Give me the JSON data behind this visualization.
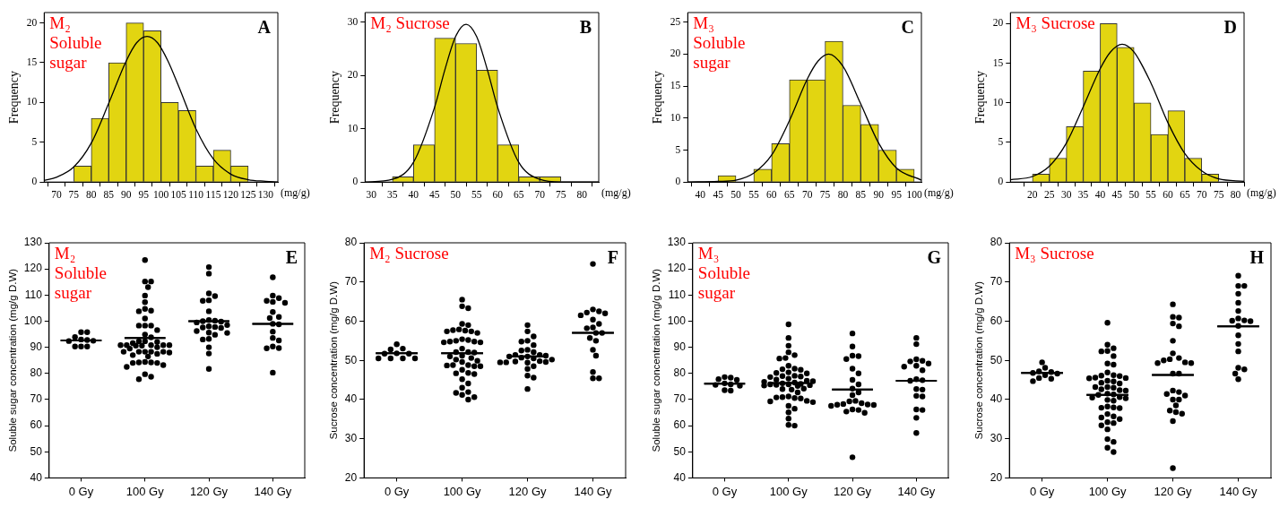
{
  "chart_data": [
    {
      "type": "histogram",
      "title": "M₂\nSoluble\nsugar",
      "annotations": [
        "A"
      ],
      "xlabel": "(mg/g)",
      "ylabel": "Frequency",
      "color": "#e2d511",
      "bins": [
        75,
        80,
        85,
        90,
        95,
        100,
        105,
        110,
        115,
        120,
        125
      ],
      "values": [
        2,
        8,
        15,
        20,
        19,
        10,
        9,
        2,
        4,
        2
      ],
      "xlim": [
        66.5,
        133.5
      ],
      "xticks": [
        70,
        75,
        80,
        85,
        90,
        95,
        100,
        105,
        110,
        115,
        120,
        125,
        130
      ],
      "ylim": [
        0,
        21.3
      ],
      "yticks": [
        0,
        5,
        10,
        15,
        20
      ],
      "series": [
        {
          "type": "line",
          "marker": "none",
          "color": "#000000",
          "x": [
            66.5,
            70,
            75,
            80,
            85,
            90,
            93,
            96,
            99,
            102,
            105,
            110,
            115,
            120,
            125,
            130,
            133.5
          ],
          "values": [
            0.2,
            0.6,
            1.9,
            4.9,
            9.9,
            15.2,
            17.5,
            18.3,
            17.5,
            15.2,
            12.1,
            6.7,
            2.9,
            1.0,
            0.3,
            0.1,
            0.0
          ]
        }
      ]
    },
    {
      "type": "histogram",
      "title": "M₂ Sucrose",
      "annotations": [
        "B"
      ],
      "xlabel": "(mg/g)",
      "ylabel": "Frequency",
      "color": "#e2d511",
      "bins": [
        35,
        40,
        45,
        50,
        55,
        60,
        65,
        70,
        75
      ],
      "values": [
        1,
        7,
        27,
        26,
        21,
        7,
        1,
        1
      ],
      "xlim": [
        28.5,
        84
      ],
      "xticks": [
        30,
        35,
        40,
        45,
        50,
        55,
        60,
        65,
        70,
        75,
        80
      ],
      "ylim": [
        0,
        31.8
      ],
      "yticks": [
        0,
        10,
        20,
        30
      ],
      "series": [
        {
          "type": "line",
          "marker": "none",
          "color": "#000000",
          "x": [
            28.5,
            35,
            40,
            45,
            47.5,
            50,
            52.5,
            55,
            57.5,
            60,
            65,
            70,
            75,
            84
          ],
          "values": [
            0,
            0.5,
            3.7,
            14,
            21.2,
            27.3,
            29.6,
            27.3,
            21.2,
            14,
            3.7,
            0.5,
            0,
            0
          ]
        }
      ]
    },
    {
      "type": "histogram",
      "title": "M₃\nSoluble\nsugar",
      "annotations": [
        "C"
      ],
      "xlabel": "(mg/g)",
      "ylabel": "Frequency",
      "color": "#e2d511",
      "bins": [
        45,
        50,
        55,
        60,
        65,
        70,
        75,
        80,
        85,
        90,
        95,
        100
      ],
      "values": [
        1,
        0,
        2,
        6,
        16,
        16,
        22,
        12,
        9,
        5,
        2
      ],
      "xlim": [
        36.5,
        102
      ],
      "xticks": [
        40,
        45,
        50,
        55,
        60,
        65,
        70,
        75,
        80,
        85,
        90,
        95,
        100
      ],
      "ylim": [
        0,
        26.5
      ],
      "yticks": [
        0,
        5,
        10,
        15,
        20,
        25
      ],
      "series": [
        {
          "type": "line",
          "marker": "none",
          "color": "#000000",
          "x": [
            36.5,
            45,
            50,
            55,
            60,
            65,
            70,
            73,
            76,
            80,
            85,
            90,
            95,
            102
          ],
          "values": [
            0,
            0.1,
            0.3,
            1.4,
            4.2,
            9.6,
            16.1,
            18.9,
            20,
            18.1,
            12.2,
            6.1,
            2.2,
            0.3
          ]
        }
      ]
    },
    {
      "type": "histogram",
      "title": "M₃ Sucrose",
      "annotations": [
        "D"
      ],
      "xlabel": "(mg/g)",
      "ylabel": "Frequency",
      "color": "#e2d511",
      "bins": [
        20,
        25,
        30,
        35,
        40,
        45,
        50,
        55,
        60,
        65,
        70,
        75
      ],
      "values": [
        1,
        3,
        7,
        14,
        20,
        17,
        10,
        6,
        9,
        3,
        1
      ],
      "xlim": [
        13.5,
        82.5
      ],
      "xticks": [
        20,
        25,
        30,
        35,
        40,
        45,
        50,
        55,
        60,
        65,
        70,
        75,
        80
      ],
      "ylim": [
        0,
        21.4
      ],
      "yticks": [
        0,
        5,
        10,
        15,
        20
      ],
      "series": [
        {
          "type": "line",
          "marker": "none",
          "color": "#000000",
          "x": [
            13.5,
            20,
            25,
            30,
            35,
            40,
            43,
            46.5,
            50,
            55,
            60,
            65,
            70,
            75,
            82.5
          ],
          "values": [
            0.3,
            0.7,
            2.0,
            4.9,
            9.5,
            14.3,
            16.4,
            17.4,
            16.4,
            12.5,
            7.5,
            3.6,
            1.4,
            0.4,
            0.1
          ]
        }
      ]
    },
    {
      "type": "scatter",
      "title": "M₂\nSoluble\nsugar",
      "annotations": [
        "E"
      ],
      "ylabel": "Soluble sugar concentration (mg/g D.W)",
      "categories": [
        "0 Gy",
        "100 Gy",
        "120 Gy",
        "140 Gy"
      ],
      "ylim": [
        40,
        130
      ],
      "yticks": [
        40,
        50,
        60,
        70,
        80,
        90,
        100,
        110,
        120,
        130
      ],
      "series": [
        {
          "type": "scatter",
          "marker": "circle",
          "color": "#000000",
          "x": [
            "0 Gy",
            "0 Gy",
            "0 Gy",
            "0 Gy",
            "0 Gy",
            "0 Gy",
            "0 Gy",
            "0 Gy",
            "0 Gy",
            "0 Gy",
            "100 Gy",
            "100 Gy",
            "100 Gy",
            "100 Gy",
            "100 Gy",
            "100 Gy",
            "100 Gy",
            "100 Gy",
            "100 Gy",
            "100 Gy",
            "100 Gy",
            "100 Gy",
            "100 Gy",
            "100 Gy",
            "100 Gy",
            "100 Gy",
            "100 Gy",
            "100 Gy",
            "100 Gy",
            "100 Gy",
            "100 Gy",
            "100 Gy",
            "100 Gy",
            "100 Gy",
            "100 Gy",
            "100 Gy",
            "100 Gy",
            "100 Gy",
            "100 Gy",
            "100 Gy",
            "100 Gy",
            "100 Gy",
            "100 Gy",
            "100 Gy",
            "100 Gy",
            "100 Gy",
            "100 Gy",
            "100 Gy",
            "100 Gy",
            "100 Gy",
            "100 Gy",
            "100 Gy",
            "100 Gy",
            "100 Gy",
            "100 Gy",
            "100 Gy",
            "100 Gy",
            "100 Gy",
            "120 Gy",
            "120 Gy",
            "120 Gy",
            "120 Gy",
            "120 Gy",
            "120 Gy",
            "120 Gy",
            "120 Gy",
            "120 Gy",
            "120 Gy",
            "120 Gy",
            "120 Gy",
            "120 Gy",
            "120 Gy",
            "120 Gy",
            "120 Gy",
            "120 Gy",
            "120 Gy",
            "120 Gy",
            "120 Gy",
            "120 Gy",
            "120 Gy",
            "120 Gy",
            "120 Gy",
            "120 Gy",
            "120 Gy",
            "140 Gy",
            "140 Gy",
            "140 Gy",
            "140 Gy",
            "140 Gy",
            "140 Gy",
            "140 Gy",
            "140 Gy",
            "140 Gy",
            "140 Gy",
            "140 Gy",
            "140 Gy",
            "140 Gy",
            "140 Gy",
            "140 Gy",
            "140 Gy",
            "140 Gy",
            "140 Gy"
          ],
          "values": [
            95.8,
            95.8,
            93.9,
            93.0,
            92.8,
            92.5,
            92.4,
            90.3,
            90.3,
            90.3,
            123.4,
            115.2,
            115.2,
            113.0,
            109.8,
            107.3,
            104.7,
            104.0,
            103.8,
            101.0,
            98.3,
            98.3,
            98.3,
            96.6,
            94.9,
            93.8,
            92.3,
            92.3,
            92.0,
            91.6,
            90.8,
            90.8,
            90.8,
            90.8,
            90.8,
            90.6,
            90.6,
            90.0,
            89.5,
            88.3,
            88.3,
            88.3,
            88.3,
            88.3,
            88.0,
            87.5,
            87.0,
            86.5,
            84.4,
            84.2,
            84.2,
            84.0,
            84.0,
            83.2,
            82.5,
            79.7,
            78.7,
            77.8,
            120.7,
            118.2,
            110.6,
            109.6,
            108.0,
            107.8,
            103.8,
            100.4,
            100.2,
            100.0,
            99.8,
            99.5,
            98.5,
            98.0,
            97.8,
            97.6,
            97.4,
            96.2,
            95.6,
            95.5,
            94.8,
            93.2,
            93.0,
            90.0,
            87.6,
            81.7,
            116.8,
            109.8,
            108.8,
            107.8,
            107.4,
            107.0,
            103.5,
            101.6,
            101.2,
            99.0,
            98.8,
            96.0,
            93.6,
            92.6,
            90.3,
            89.7,
            89.6,
            80.3
          ]
        },
        {
          "type": "box",
          "color": "#000000",
          "boxes": [
            {
              "low": 92.6,
              "q1": 92.6,
              "median": 92.6,
              "q3": 92.6,
              "high": 92.6
            },
            {
              "low": 93.6,
              "q1": 93.6,
              "median": 93.6,
              "q3": 93.6,
              "high": 93.6
            },
            {
              "low": 100.0,
              "q1": 100.0,
              "median": 100.0,
              "q3": 100.0,
              "high": 100.0
            },
            {
              "low": 99.0,
              "q1": 99.0,
              "median": 99.0,
              "q3": 99.0,
              "high": 99.0
            }
          ]
        }
      ]
    },
    {
      "type": "scatter",
      "title": "M₂ Sucrose",
      "annotations": [
        "F"
      ],
      "ylabel": "Sucrose concentration (mg/g D.W)",
      "categories": [
        "0 Gy",
        "100 Gy",
        "120 Gy",
        "140 Gy"
      ],
      "ylim": [
        20,
        80
      ],
      "yticks": [
        20,
        30,
        40,
        50,
        60,
        70,
        80
      ],
      "series": [
        {
          "type": "scatter",
          "marker": "circle",
          "color": "#000000",
          "x": [
            "0 Gy",
            "0 Gy",
            "0 Gy",
            "0 Gy",
            "0 Gy",
            "0 Gy",
            "0 Gy",
            "0 Gy",
            "0 Gy",
            "0 Gy",
            "100 Gy",
            "100 Gy",
            "100 Gy",
            "100 Gy",
            "100 Gy",
            "100 Gy",
            "100 Gy",
            "100 Gy",
            "100 Gy",
            "100 Gy",
            "100 Gy",
            "100 Gy",
            "100 Gy",
            "100 Gy",
            "100 Gy",
            "100 Gy",
            "100 Gy",
            "100 Gy",
            "100 Gy",
            "100 Gy",
            "100 Gy",
            "100 Gy",
            "100 Gy",
            "100 Gy",
            "100 Gy",
            "100 Gy",
            "100 Gy",
            "100 Gy",
            "100 Gy",
            "100 Gy",
            "100 Gy",
            "100 Gy",
            "100 Gy",
            "100 Gy",
            "100 Gy",
            "100 Gy",
            "100 Gy",
            "100 Gy",
            "100 Gy",
            "100 Gy",
            "100 Gy",
            "100 Gy",
            "100 Gy",
            "100 Gy",
            "100 Gy",
            "120 Gy",
            "120 Gy",
            "120 Gy",
            "120 Gy",
            "120 Gy",
            "120 Gy",
            "120 Gy",
            "120 Gy",
            "120 Gy",
            "120 Gy",
            "120 Gy",
            "120 Gy",
            "120 Gy",
            "120 Gy",
            "120 Gy",
            "120 Gy",
            "120 Gy",
            "120 Gy",
            "120 Gy",
            "120 Gy",
            "120 Gy",
            "120 Gy",
            "120 Gy",
            "120 Gy",
            "120 Gy",
            "120 Gy",
            "120 Gy",
            "120 Gy",
            "140 Gy",
            "140 Gy",
            "140 Gy",
            "140 Gy",
            "140 Gy",
            "140 Gy",
            "140 Gy",
            "140 Gy",
            "140 Gy",
            "140 Gy",
            "140 Gy",
            "140 Gy",
            "140 Gy",
            "140 Gy",
            "140 Gy",
            "140 Gy",
            "140 Gy",
            "140 Gy",
            "140 Gy"
          ],
          "values": [
            54.1,
            53.0,
            52.8,
            51.8,
            51.7,
            51.7,
            50.5,
            50.5,
            50.5,
            50.5,
            65.5,
            63.8,
            63.3,
            59.3,
            59.0,
            57.9,
            57.7,
            57.6,
            57.4,
            57.4,
            57.0,
            55.4,
            55.2,
            55.0,
            54.8,
            54.8,
            54.6,
            54.6,
            53.0,
            52.1,
            52.1,
            52.0,
            51.2,
            51.0,
            50.6,
            50.2,
            49.9,
            49.6,
            48.8,
            48.8,
            48.7,
            48.5,
            48.5,
            47.6,
            46.8,
            46.7,
            46.5,
            45.2,
            44.1,
            43.0,
            41.9,
            41.7,
            41.2,
            40.6,
            40.0,
            59.0,
            57.4,
            56.1,
            55.0,
            54.8,
            53.9,
            52.7,
            52.5,
            52.1,
            51.4,
            51.4,
            51.2,
            51.0,
            51.0,
            50.7,
            50.5,
            50.2,
            49.8,
            49.7,
            49.6,
            49.5,
            49.5,
            49.4,
            48.5,
            47.8,
            46.1,
            45.6,
            42.7,
            74.6,
            63.0,
            62.5,
            62.2,
            62.0,
            61.5,
            60.4,
            59.3,
            58.4,
            58.2,
            57.0,
            57.0,
            55.7,
            55.0,
            52.7,
            51.2,
            47.0,
            45.4,
            45.4
          ]
        },
        {
          "type": "box",
          "color": "#000000",
          "boxes": [
            {
              "low": 51.8,
              "q1": 51.8,
              "median": 51.8,
              "q3": 51.8,
              "high": 51.8
            },
            {
              "low": 51.8,
              "q1": 51.8,
              "median": 51.8,
              "q3": 51.8,
              "high": 51.8
            },
            {
              "low": 51.0,
              "q1": 51.0,
              "median": 51.0,
              "q3": 51.0,
              "high": 51.0
            },
            {
              "low": 57.0,
              "q1": 57.0,
              "median": 57.0,
              "q3": 57.0,
              "high": 57.0
            }
          ]
        }
      ]
    },
    {
      "type": "scatter",
      "title": "M₃\nSoluble\nsugar",
      "annotations": [
        "G"
      ],
      "ylabel": "Soluble sugar concentration (mg/g D.W)",
      "categories": [
        "0 Gy",
        "100 Gy",
        "120 Gy",
        "140 Gy"
      ],
      "ylim": [
        40,
        130
      ],
      "yticks": [
        40,
        50,
        60,
        70,
        80,
        90,
        100,
        110,
        120,
        130
      ],
      "series": [
        {
          "type": "scatter",
          "marker": "circle",
          "color": "#000000",
          "x": [
            "0 Gy",
            "0 Gy",
            "0 Gy",
            "0 Gy",
            "0 Gy",
            "0 Gy",
            "0 Gy",
            "0 Gy",
            "0 Gy",
            "0 Gy",
            "100 Gy",
            "100 Gy",
            "100 Gy",
            "100 Gy",
            "100 Gy",
            "100 Gy",
            "100 Gy",
            "100 Gy",
            "100 Gy",
            "100 Gy",
            "100 Gy",
            "100 Gy",
            "100 Gy",
            "100 Gy",
            "100 Gy",
            "100 Gy",
            "100 Gy",
            "100 Gy",
            "100 Gy",
            "100 Gy",
            "100 Gy",
            "100 Gy",
            "100 Gy",
            "100 Gy",
            "100 Gy",
            "100 Gy",
            "100 Gy",
            "100 Gy",
            "100 Gy",
            "100 Gy",
            "100 Gy",
            "100 Gy",
            "100 Gy",
            "100 Gy",
            "100 Gy",
            "100 Gy",
            "100 Gy",
            "100 Gy",
            "100 Gy",
            "100 Gy",
            "100 Gy",
            "100 Gy",
            "100 Gy",
            "100 Gy",
            "100 Gy",
            "100 Gy",
            "100 Gy",
            "100 Gy",
            "100 Gy",
            "100 Gy",
            "120 Gy",
            "120 Gy",
            "120 Gy",
            "120 Gy",
            "120 Gy",
            "120 Gy",
            "120 Gy",
            "120 Gy",
            "120 Gy",
            "120 Gy",
            "120 Gy",
            "120 Gy",
            "120 Gy",
            "120 Gy",
            "120 Gy",
            "120 Gy",
            "120 Gy",
            "120 Gy",
            "120 Gy",
            "120 Gy",
            "120 Gy",
            "120 Gy",
            "120 Gy",
            "120 Gy",
            "120 Gy",
            "140 Gy",
            "140 Gy",
            "140 Gy",
            "140 Gy",
            "140 Gy",
            "140 Gy",
            "140 Gy",
            "140 Gy",
            "140 Gy",
            "140 Gy",
            "140 Gy",
            "140 Gy",
            "140 Gy",
            "140 Gy",
            "140 Gy",
            "140 Gy",
            "140 Gy",
            "140 Gy",
            "140 Gy",
            "140 Gy"
          ],
          "values": [
            78.6,
            78.4,
            77.8,
            77.5,
            76.2,
            75.8,
            75.6,
            75.3,
            73.6,
            73.4,
            98.8,
            93.6,
            90.6,
            88.1,
            87.0,
            85.9,
            85.7,
            82.9,
            81.8,
            81.6,
            81.4,
            80.4,
            80.2,
            80.0,
            79.1,
            79.0,
            78.8,
            78.6,
            78.0,
            77.6,
            77.2,
            77.0,
            76.8,
            76.5,
            76.2,
            76.0,
            75.8,
            75.8,
            75.6,
            75.5,
            75.4,
            75.2,
            74.2,
            74.0,
            73.8,
            72.7,
            71.2,
            70.9,
            70.8,
            70.6,
            70.4,
            69.5,
            69.3,
            69.0,
            67.6,
            66.5,
            65.1,
            62.7,
            60.3,
            60.0,
            95.3,
            90.3,
            86.8,
            86.6,
            85.5,
            81.8,
            80.0,
            77.5,
            75.8,
            74.2,
            72.7,
            71.7,
            69.5,
            69.3,
            68.6,
            68.3,
            68.1,
            68.0,
            67.9,
            67.6,
            66.2,
            66.0,
            65.4,
            64.9,
            47.9,
            93.6,
            91.2,
            85.4,
            84.8,
            84.6,
            83.8,
            82.9,
            82.6,
            81.2,
            77.8,
            77.4,
            77.2,
            74.0,
            73.8,
            71.4,
            71.2,
            66.2,
            66.0,
            63.0,
            57.2
          ]
        },
        {
          "type": "box",
          "color": "#000000",
          "boxes": [
            {
              "low": 76.1,
              "q1": 76.1,
              "median": 76.1,
              "q3": 76.1,
              "high": 76.1
            },
            {
              "low": 76.3,
              "q1": 76.3,
              "median": 76.3,
              "q3": 76.3,
              "high": 76.3
            },
            {
              "low": 73.8,
              "q1": 73.8,
              "median": 73.8,
              "q3": 73.8,
              "high": 73.8
            },
            {
              "low": 77.2,
              "q1": 77.2,
              "median": 77.2,
              "q3": 77.2,
              "high": 77.2
            }
          ]
        }
      ]
    },
    {
      "type": "scatter",
      "title": "M₃ Sucrose",
      "annotations": [
        "H"
      ],
      "ylabel": "Sucrose concentration (mg/g D.W)",
      "categories": [
        "0 Gy",
        "100 Gy",
        "120 Gy",
        "140 Gy"
      ],
      "ylim": [
        20,
        80
      ],
      "yticks": [
        20,
        30,
        40,
        50,
        60,
        70,
        80
      ],
      "series": [
        {
          "type": "scatter",
          "marker": "circle",
          "color": "#000000",
          "x": [
            "0 Gy",
            "0 Gy",
            "0 Gy",
            "0 Gy",
            "0 Gy",
            "0 Gy",
            "0 Gy",
            "0 Gy",
            "0 Gy",
            "0 Gy",
            "100 Gy",
            "100 Gy",
            "100 Gy",
            "100 Gy",
            "100 Gy",
            "100 Gy",
            "100 Gy",
            "100 Gy",
            "100 Gy",
            "100 Gy",
            "100 Gy",
            "100 Gy",
            "100 Gy",
            "100 Gy",
            "100 Gy",
            "100 Gy",
            "100 Gy",
            "100 Gy",
            "100 Gy",
            "100 Gy",
            "100 Gy",
            "100 Gy",
            "100 Gy",
            "100 Gy",
            "100 Gy",
            "100 Gy",
            "100 Gy",
            "100 Gy",
            "100 Gy",
            "100 Gy",
            "100 Gy",
            "100 Gy",
            "100 Gy",
            "100 Gy",
            "100 Gy",
            "100 Gy",
            "100 Gy",
            "100 Gy",
            "100 Gy",
            "100 Gy",
            "100 Gy",
            "100 Gy",
            "100 Gy",
            "100 Gy",
            "100 Gy",
            "100 Gy",
            "100 Gy",
            "100 Gy",
            "100 Gy",
            "120 Gy",
            "120 Gy",
            "120 Gy",
            "120 Gy",
            "120 Gy",
            "120 Gy",
            "120 Gy",
            "120 Gy",
            "120 Gy",
            "120 Gy",
            "120 Gy",
            "120 Gy",
            "120 Gy",
            "120 Gy",
            "120 Gy",
            "120 Gy",
            "120 Gy",
            "120 Gy",
            "120 Gy",
            "120 Gy",
            "120 Gy",
            "120 Gy",
            "120 Gy",
            "120 Gy",
            "120 Gy",
            "120 Gy",
            "120 Gy",
            "140 Gy",
            "140 Gy",
            "140 Gy",
            "140 Gy",
            "140 Gy",
            "140 Gy",
            "140 Gy",
            "140 Gy",
            "140 Gy",
            "140 Gy",
            "140 Gy",
            "140 Gy",
            "140 Gy",
            "140 Gy",
            "140 Gy",
            "140 Gy",
            "140 Gy",
            "140 Gy"
          ],
          "values": [
            49.5,
            48.1,
            47.2,
            47.0,
            46.8,
            46.6,
            46.2,
            45.5,
            45.3,
            44.7,
            59.6,
            54.0,
            53.1,
            52.4,
            52.3,
            51.1,
            49.2,
            48.9,
            46.9,
            46.2,
            46.1,
            46.0,
            45.6,
            45.5,
            45.4,
            44.8,
            44.6,
            44.3,
            44.1,
            43.2,
            43.2,
            43.0,
            42.6,
            42.4,
            42.3,
            41.5,
            41.3,
            41.2,
            40.6,
            40.5,
            40.3,
            39.9,
            39.7,
            38.2,
            38.0,
            37.9,
            37.8,
            36.3,
            35.7,
            35.4,
            35.0,
            34.2,
            34.0,
            33.4,
            32.4,
            29.9,
            29.2,
            27.7,
            26.6,
            64.3,
            61.1,
            60.9,
            59.4,
            58.7,
            55.0,
            51.8,
            50.6,
            50.3,
            50.0,
            49.5,
            49.3,
            49.3,
            46.6,
            46.6,
            42.3,
            41.9,
            41.4,
            41.0,
            40.0,
            40.0,
            38.5,
            37.2,
            36.8,
            36.4,
            34.5,
            22.5,
            71.6,
            69.0,
            69.0,
            67.0,
            64.7,
            62.6,
            60.7,
            60.2,
            60.1,
            60.0,
            58.8,
            56.4,
            54.2,
            52.3,
            48.1,
            47.7,
            46.6,
            45.2
          ]
        },
        {
          "type": "box",
          "color": "#000000",
          "boxes": [
            {
              "low": 46.8,
              "q1": 46.8,
              "median": 46.8,
              "q3": 46.8,
              "high": 46.8
            },
            {
              "low": 41.2,
              "q1": 41.2,
              "median": 41.2,
              "q3": 41.2,
              "high": 41.2
            },
            {
              "low": 46.3,
              "q1": 46.3,
              "median": 46.3,
              "q3": 46.3,
              "high": 46.3
            },
            {
              "low": 58.7,
              "q1": 58.7,
              "median": 58.7,
              "q3": 58.7,
              "high": 58.7
            }
          ]
        }
      ]
    }
  ]
}
